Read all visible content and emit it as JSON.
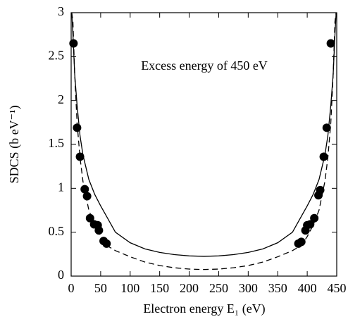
{
  "chart_data": {
    "type": "scatter",
    "annotation": "Excess energy of 450 eV",
    "x_label": "Electron energy E₁ (eV)",
    "y_label": "SDCS (b eV⁻¹)",
    "xlim": [
      0,
      450
    ],
    "ylim": [
      0,
      3
    ],
    "xticks": [
      0,
      50,
      100,
      150,
      200,
      250,
      300,
      350,
      400,
      450
    ],
    "yticks": [
      0,
      0.5,
      1,
      1.5,
      2,
      2.5,
      3
    ],
    "series": [
      {
        "style": "solid",
        "color": "#000000",
        "x": [
          1,
          3,
          6,
          10,
          15,
          20,
          30,
          40,
          50,
          60,
          75,
          100,
          125,
          150,
          175,
          200,
          225,
          250,
          275,
          300,
          325,
          350,
          375,
          390,
          400,
          410,
          420,
          430,
          435,
          440,
          444,
          447,
          449
        ],
        "values": [
          3.0,
          2.75,
          2.3,
          1.95,
          1.6,
          1.38,
          1.1,
          0.93,
          0.8,
          0.68,
          0.5,
          0.38,
          0.31,
          0.27,
          0.245,
          0.23,
          0.225,
          0.23,
          0.245,
          0.27,
          0.31,
          0.38,
          0.5,
          0.68,
          0.8,
          0.93,
          1.1,
          1.38,
          1.6,
          1.95,
          2.3,
          2.75,
          3.0
        ]
      },
      {
        "style": "dashed",
        "color": "#000000",
        "x": [
          1,
          3,
          6,
          10,
          15,
          20,
          30,
          40,
          50,
          60,
          75,
          100,
          125,
          150,
          175,
          200,
          225,
          250,
          275,
          300,
          325,
          350,
          375,
          390,
          400,
          410,
          420,
          430,
          435,
          440,
          444,
          447,
          449
        ],
        "values": [
          3.0,
          2.9,
          2.3,
          1.75,
          1.35,
          1.08,
          0.75,
          0.58,
          0.45,
          0.35,
          0.29,
          0.22,
          0.16,
          0.12,
          0.095,
          0.08,
          0.075,
          0.08,
          0.095,
          0.12,
          0.16,
          0.22,
          0.29,
          0.35,
          0.45,
          0.58,
          0.75,
          1.08,
          1.35,
          1.75,
          2.3,
          2.9,
          3.0
        ]
      },
      {
        "style": "markers",
        "color": "#000000",
        "x": [
          4,
          10,
          15,
          23,
          27,
          32,
          39,
          45,
          47,
          55,
          60,
          385,
          390,
          397,
          400,
          405,
          412,
          419,
          422,
          428,
          433,
          440
        ],
        "values": [
          2.65,
          1.69,
          1.36,
          0.99,
          0.91,
          0.66,
          0.59,
          0.58,
          0.52,
          0.4,
          0.37,
          0.37,
          0.39,
          0.52,
          0.58,
          0.59,
          0.66,
          0.92,
          0.98,
          1.36,
          1.69,
          2.65
        ]
      }
    ]
  }
}
